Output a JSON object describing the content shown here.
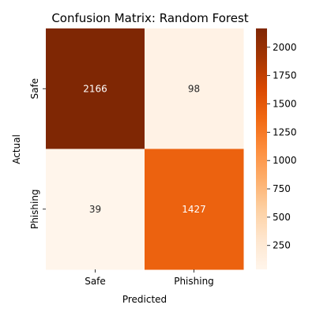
{
  "chart_data": {
    "type": "heatmap",
    "title": "Confusion Matrix: Random Forest",
    "xlabel": "Predicted",
    "ylabel": "Actual",
    "x_categories": [
      "Safe",
      "Phishing"
    ],
    "y_categories": [
      "Safe",
      "Phishing"
    ],
    "values": [
      [
        2166,
        98
      ],
      [
        39,
        1427
      ]
    ],
    "colormap": "Oranges",
    "colorbar": {
      "ticks": [
        250,
        500,
        750,
        1000,
        1250,
        1500,
        1750,
        2000
      ],
      "range": [
        39,
        2166
      ]
    }
  },
  "colors": {
    "low": "#fff5eb",
    "high": "#7f2704",
    "text_dark": "#262626",
    "text_light": "#ffffff"
  }
}
